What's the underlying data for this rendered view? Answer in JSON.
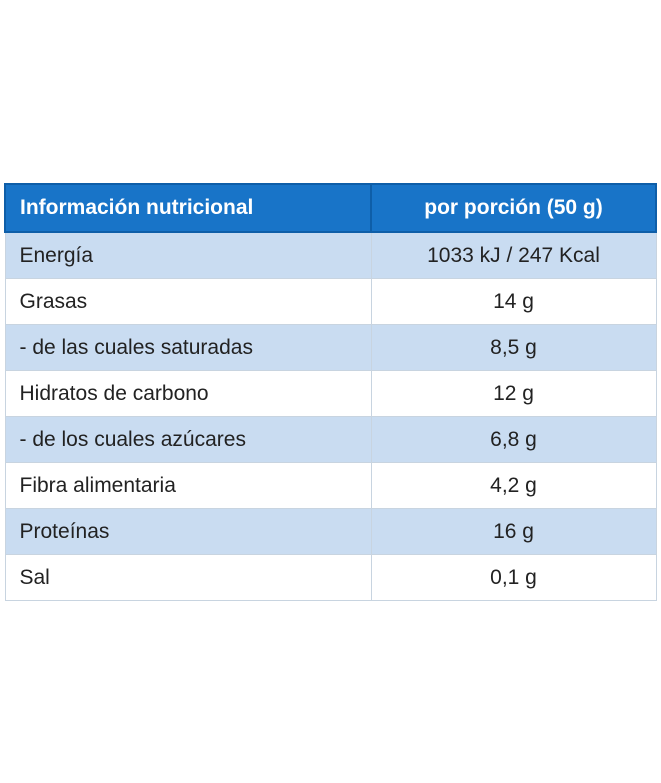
{
  "table": {
    "header": [
      "Información nutricional",
      "por porción (50 g)"
    ],
    "rows": [
      [
        "Energía",
        "1033 kJ / 247 Kcal"
      ],
      [
        "Grasas",
        "14 g"
      ],
      [
        "- de las cuales saturadas",
        "8,5 g"
      ],
      [
        "Hidratos de carbono",
        "12 g"
      ],
      [
        "- de los cuales azúcares",
        "6,8 g"
      ],
      [
        "Fibra alimentaria",
        "4,2 g"
      ],
      [
        "Proteínas",
        "16 g"
      ],
      [
        "Sal",
        "0,1 g"
      ]
    ]
  }
}
